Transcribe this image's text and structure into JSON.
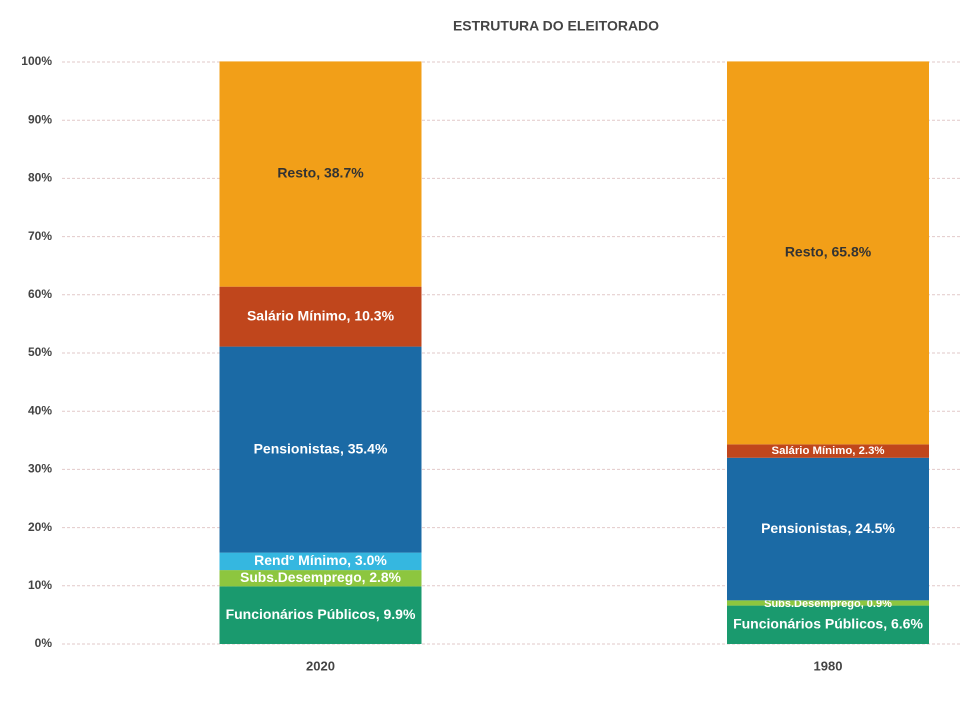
{
  "chart_data": {
    "type": "stacked-bar",
    "title": "ESTRUTURA DO ELEITORADO",
    "categories": [
      "2020",
      "1980"
    ],
    "series": [
      {
        "color": "#1a9a6e",
        "label_color": "#ffffff",
        "values": [
          9.9,
          6.6
        ],
        "value_labels": [
          "Funcionários Públicos, 9.9%",
          "Funcionários Públicos, 6.6%"
        ]
      },
      {
        "color": "#8dc63f",
        "label_color": "#ffffff",
        "values": [
          2.8,
          0.9
        ],
        "value_labels": [
          "Subs.Desemprego, 2.8%",
          "Subs.Desemprego, 0.9%"
        ]
      },
      {
        "color": "#35b7e0",
        "label_color": "#ffffff",
        "values": [
          3.0,
          null
        ],
        "value_labels": [
          "Rendº Mínimo, 3.0%",
          null
        ]
      },
      {
        "color": "#1b6aa5",
        "label_color": "#ffffff",
        "values": [
          35.4,
          24.5
        ],
        "value_labels": [
          "Pensionistas, 35.4%",
          "Pensionistas, 24.5%"
        ]
      },
      {
        "color": "#c0461c",
        "label_color": "#ffffff",
        "values": [
          10.3,
          2.3
        ],
        "value_labels": [
          "Salário Mínimo, 10.3%",
          "Salário Mínimo, 2.3%"
        ]
      },
      {
        "color": "#f29f18",
        "label_color": "#333333",
        "values": [
          38.7,
          65.8
        ],
        "value_labels": [
          "Resto, 38.7%",
          "Resto, 65.8%"
        ]
      }
    ],
    "ylim": [
      0,
      100
    ],
    "yticks": [
      {
        "value": 0,
        "label": "0%"
      },
      {
        "value": 10,
        "label": "10%"
      },
      {
        "value": 20,
        "label": "20%"
      },
      {
        "value": 30,
        "label": "30%"
      },
      {
        "value": 40,
        "label": "40%"
      },
      {
        "value": 50,
        "label": "50%"
      },
      {
        "value": 60,
        "label": "60%"
      },
      {
        "value": 70,
        "label": "70%"
      },
      {
        "value": 80,
        "label": "80%"
      },
      {
        "value": 90,
        "label": "90%"
      },
      {
        "value": 100,
        "label": "100%"
      }
    ],
    "grid": true
  }
}
